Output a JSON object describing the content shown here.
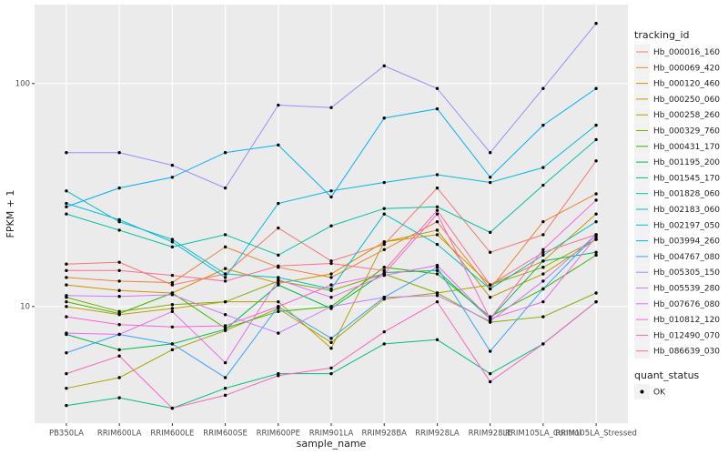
{
  "chart_data": {
    "type": "line",
    "x_label": "sample_name",
    "y_label": "FPKM + 1",
    "log_y": true,
    "grid": true,
    "point_color": "#000000",
    "legend_title": "tracking_id",
    "shape_legend": {
      "title": "quant_status",
      "labels": [
        "OK"
      ]
    },
    "categories": [
      "PB350LA",
      "RRIM600LA",
      "RRIM600LE",
      "RRIM600SE",
      "RRIM600PE",
      "RRIM901LA",
      "RRIM928BA",
      "RRIM928LA",
      "RRIM928LE",
      "RRIM105LA_Control",
      "RRIM105LA_Stressed"
    ],
    "ylim": [
      3.0,
      226
    ],
    "yticks": [
      10,
      100
    ],
    "series": [
      {
        "name": "Hb_000016_160",
        "color": "#F8766D",
        "values": [
          15.5,
          15.8,
          12.5,
          14,
          22.5,
          16,
          19,
          34,
          17.5,
          21,
          45
        ]
      },
      {
        "name": "Hb_000069_420",
        "color": "#EA8331",
        "values": [
          13.5,
          13,
          12.8,
          18.5,
          15,
          13.5,
          18,
          24,
          12,
          24,
          32
        ]
      },
      {
        "name": "Hb_000120_460",
        "color": "#D89000",
        "values": [
          12.5,
          11.8,
          11.5,
          14.8,
          12.7,
          14,
          19.5,
          21,
          12.5,
          16,
          26
        ]
      },
      {
        "name": "Hb_000250_060",
        "color": "#C09B00",
        "values": [
          10,
          9.2,
          9.8,
          10.5,
          10.5,
          6.5,
          19.5,
          22,
          11,
          14,
          20
        ]
      },
      {
        "name": "Hb_000258_260",
        "color": "#A3A500",
        "values": [
          4.3,
          4.8,
          6.4,
          7.8,
          9.8,
          6.9,
          10.8,
          11.5,
          12.5,
          15,
          20
        ]
      },
      {
        "name": "Hb_000329_760",
        "color": "#7CAE00",
        "values": [
          11,
          9.5,
          10.2,
          10.5,
          13,
          11.8,
          14,
          11.5,
          8.5,
          9,
          11.5
        ]
      },
      {
        "name": "Hb_000431_170",
        "color": "#39B600",
        "values": [
          10.5,
          9.3,
          11.5,
          8,
          9.5,
          10,
          15,
          14,
          9,
          12,
          17
        ]
      },
      {
        "name": "Hb_001195_200",
        "color": "#00BB4E",
        "values": [
          7.5,
          6.4,
          6.8,
          7.9,
          12.5,
          9.8,
          14.2,
          14.5,
          8.8,
          16,
          17.5
        ]
      },
      {
        "name": "Hb_001545_170",
        "color": "#00BF7D",
        "values": [
          3.6,
          3.9,
          3.5,
          4.3,
          5,
          5,
          6.8,
          7.1,
          5,
          6.8,
          10.5
        ]
      },
      {
        "name": "Hb_001828_060",
        "color": "#00C1A3",
        "values": [
          26,
          22,
          18.5,
          21,
          17,
          23,
          27.5,
          28,
          21.5,
          35,
          56
        ]
      },
      {
        "name": "Hb_002183_060",
        "color": "#00BFC4",
        "values": [
          33,
          24,
          20,
          14,
          13.5,
          12,
          26,
          19,
          12,
          17,
          24
        ]
      },
      {
        "name": "Hb_002197_050",
        "color": "#00BAE0",
        "values": [
          29,
          24.5,
          19.5,
          13.5,
          29,
          33,
          36,
          39,
          36,
          42,
          65
        ]
      },
      {
        "name": "Hb_003994_260",
        "color": "#00B0F6",
        "values": [
          28,
          34,
          38,
          49,
          53,
          31,
          70,
          77,
          38,
          65,
          95
        ]
      },
      {
        "name": "Hb_004767_080",
        "color": "#35A2FF",
        "values": [
          6.2,
          7.5,
          6.8,
          4.8,
          10,
          7.2,
          11,
          15,
          6.3,
          12,
          21
        ]
      },
      {
        "name": "Hb_005305_150",
        "color": "#9590FF",
        "values": [
          49,
          49,
          43,
          34,
          80,
          78,
          120,
          95,
          49,
          95,
          186
        ]
      },
      {
        "name": "Hb_005539_280",
        "color": "#C77CFF",
        "values": [
          11.2,
          11.1,
          11.3,
          9.2,
          7.6,
          10,
          11,
          11.2,
          8.6,
          13,
          21
        ]
      },
      {
        "name": "Hb_007676_080",
        "color": "#E76BF3",
        "values": [
          7.6,
          7.5,
          9.5,
          5.6,
          13.2,
          11,
          13.8,
          15.3,
          8.8,
          10.5,
          20.5
        ]
      },
      {
        "name": "Hb_010812_120",
        "color": "#FA62DB",
        "values": [
          9,
          8.3,
          8.1,
          8.2,
          10,
          12.5,
          14,
          26,
          8.8,
          18,
          30
        ]
      },
      {
        "name": "Hb_012490_070",
        "color": "#FF62BC",
        "values": [
          5,
          6,
          3.5,
          4,
          4.9,
          5.3,
          7.7,
          10.5,
          4.6,
          6.8,
          10.5
        ]
      },
      {
        "name": "Hb_086639_030",
        "color": "#FF6C91",
        "values": [
          14.5,
          14.5,
          13.8,
          13,
          15.2,
          15.6,
          14.5,
          27,
          12.5,
          17.5,
          21
        ]
      }
    ]
  }
}
